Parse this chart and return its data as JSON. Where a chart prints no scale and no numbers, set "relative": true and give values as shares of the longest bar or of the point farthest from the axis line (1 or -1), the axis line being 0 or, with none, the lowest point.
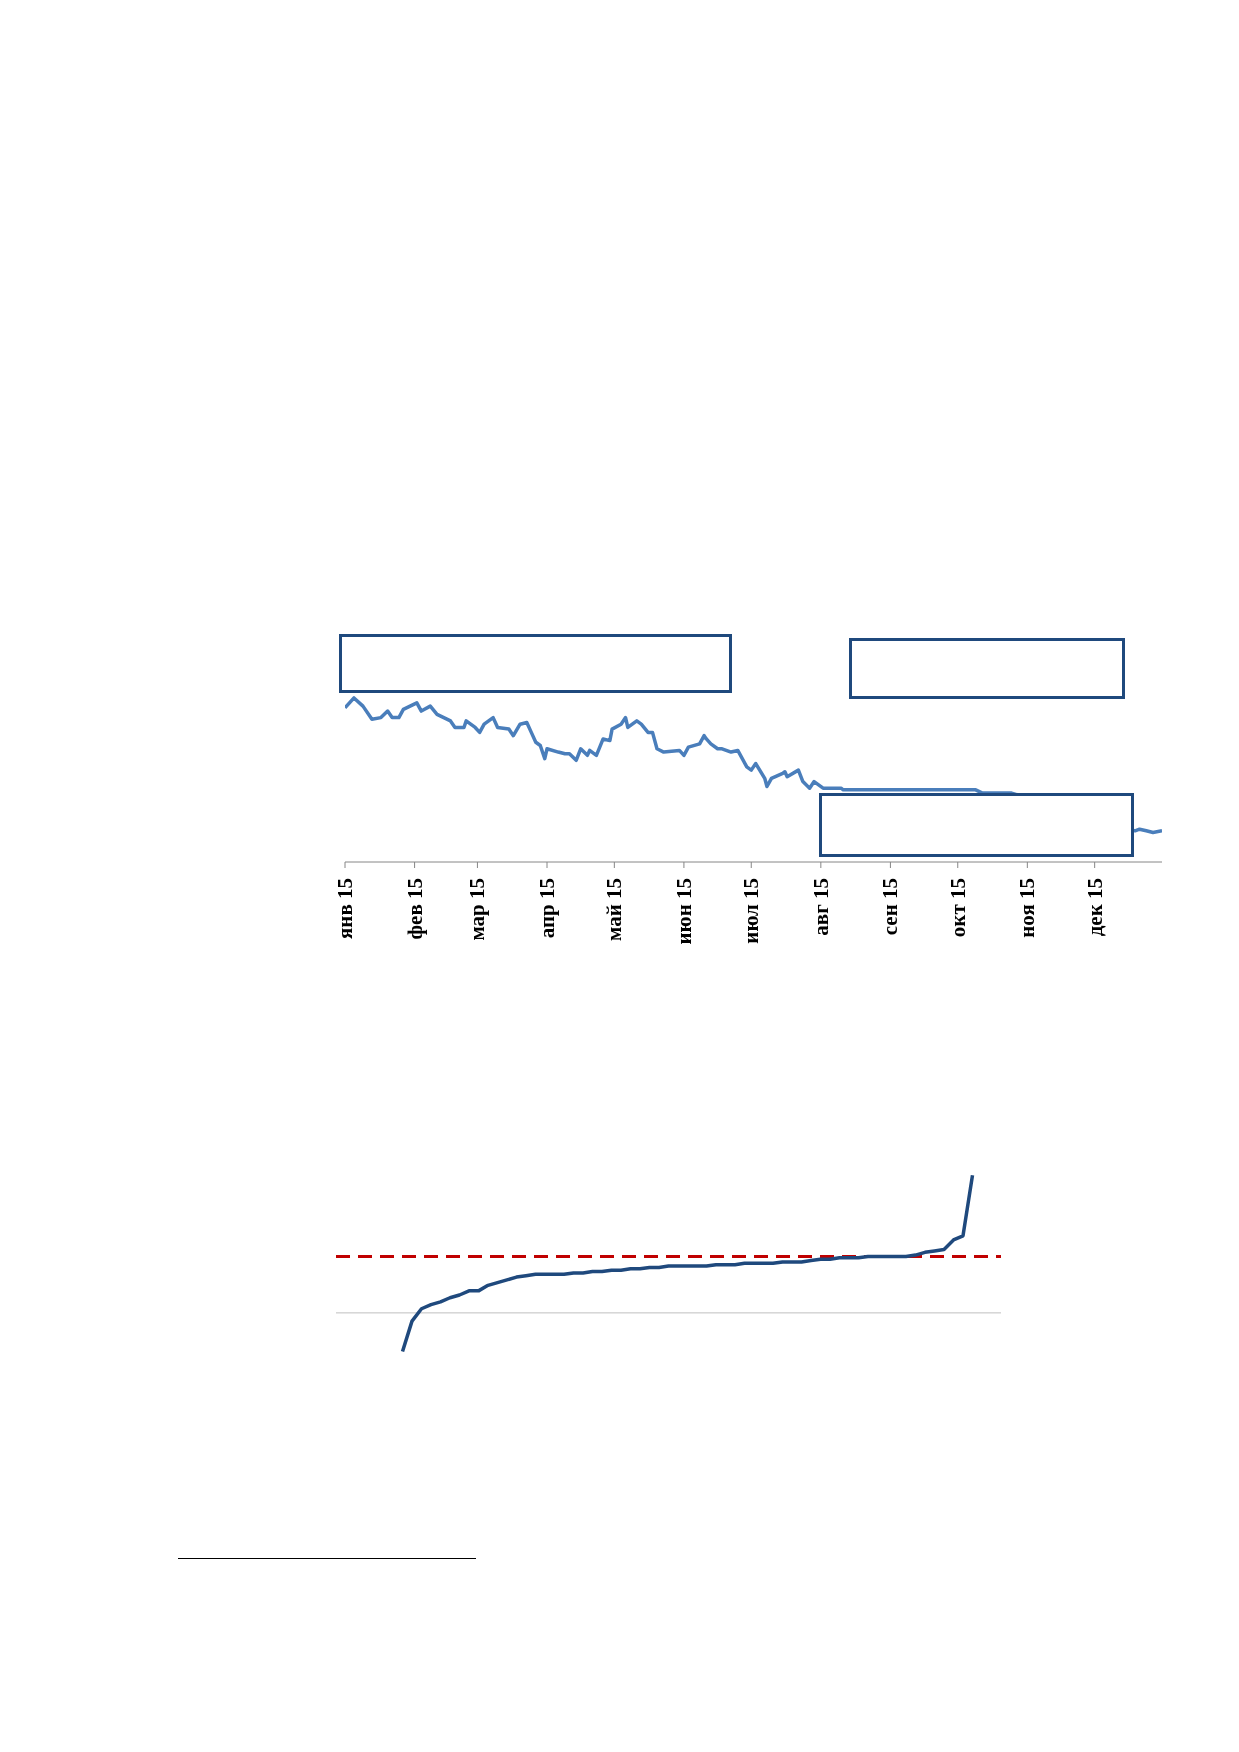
{
  "chart_data": [
    {
      "type": "line",
      "relative": true,
      "tick_labels": "x",
      "xlim": [
        "2015-01-01",
        "2015-12-31"
      ],
      "xticks": [
        {
          "value": "2015-01-01",
          "label": "янв 15"
        },
        {
          "value": "2015-02-01",
          "label": "фев 15"
        },
        {
          "value": "2015-03-01",
          "label": "мар 15"
        },
        {
          "value": "2015-04-01",
          "label": "апр 15"
        },
        {
          "value": "2015-05-01",
          "label": "май 15"
        },
        {
          "value": "2015-06-01",
          "label": "июн 15"
        },
        {
          "value": "2015-07-01",
          "label": "июл 15"
        },
        {
          "value": "2015-08-01",
          "label": "авг 15"
        },
        {
          "value": "2015-09-01",
          "label": "сен 15"
        },
        {
          "value": "2015-10-01",
          "label": "окт 15"
        },
        {
          "value": "2015-11-01",
          "label": "ноя 15"
        },
        {
          "value": "2015-12-01",
          "label": "дек 15"
        }
      ],
      "x": [
        "2015-01-01",
        "2015-01-05",
        "2015-01-09",
        "2015-01-13",
        "2015-01-17",
        "2015-01-20",
        "2015-01-22",
        "2015-01-25",
        "2015-01-27",
        "2015-02-02",
        "2015-02-04",
        "2015-02-08",
        "2015-02-11",
        "2015-02-17",
        "2015-02-19",
        "2015-02-23",
        "2015-02-24",
        "2015-02-28",
        "2015-03-02",
        "2015-03-04",
        "2015-03-08",
        "2015-03-10",
        "2015-03-15",
        "2015-03-17",
        "2015-03-20",
        "2015-03-23",
        "2015-03-25",
        "2015-03-27",
        "2015-03-29",
        "2015-03-31",
        "2015-04-01",
        "2015-04-06",
        "2015-04-09",
        "2015-04-11",
        "2015-04-14",
        "2015-04-16",
        "2015-04-19",
        "2015-04-20",
        "2015-04-23",
        "2015-04-26",
        "2015-04-29",
        "2015-04-30",
        "2015-05-04",
        "2015-05-06",
        "2015-05-07",
        "2015-05-11",
        "2015-05-13",
        "2015-05-16",
        "2015-05-18",
        "2015-05-20",
        "2015-05-23",
        "2015-05-30",
        "2015-06-01",
        "2015-06-03",
        "2015-06-08",
        "2015-06-10",
        "2015-06-11",
        "2015-06-13",
        "2015-06-16",
        "2015-06-18",
        "2015-06-22",
        "2015-06-25",
        "2015-06-29",
        "2015-07-01",
        "2015-07-03",
        "2015-07-07",
        "2015-07-08",
        "2015-07-10",
        "2015-07-15",
        "2015-07-16",
        "2015-07-17",
        "2015-07-22",
        "2015-07-24",
        "2015-07-27",
        "2015-07-29",
        "2015-08-02",
        "2015-08-10",
        "2015-08-11",
        "2015-08-13",
        "2015-08-29",
        "2015-10-09",
        "2015-10-12",
        "2015-10-20",
        "2015-10-24",
        "2015-10-25",
        "2015-11-17",
        "2015-12-19",
        "2015-12-21",
        "2015-12-24",
        "2015-12-27",
        "2015-12-31"
      ],
      "series": [
        {
          "color": "#4a7ebb",
          "values": [
            0.94,
            1,
            0.95,
            0.87,
            0.88,
            0.92,
            0.88,
            0.88,
            0.93,
            0.97,
            0.92,
            0.95,
            0.9,
            0.86,
            0.82,
            0.82,
            0.86,
            0.82,
            0.79,
            0.84,
            0.88,
            0.82,
            0.81,
            0.77,
            0.84,
            0.85,
            0.79,
            0.73,
            0.71,
            0.63,
            0.69,
            0.67,
            0.66,
            0.66,
            0.62,
            0.69,
            0.65,
            0.68,
            0.65,
            0.75,
            0.74,
            0.81,
            0.84,
            0.88,
            0.82,
            0.86,
            0.84,
            0.79,
            0.79,
            0.69,
            0.67,
            0.68,
            0.65,
            0.7,
            0.72,
            0.77,
            0.75,
            0.72,
            0.69,
            0.69,
            0.67,
            0.68,
            0.58,
            0.56,
            0.6,
            0.51,
            0.46,
            0.51,
            0.54,
            0.55,
            0.52,
            0.56,
            0.49,
            0.45,
            0.49,
            0.45,
            0.45,
            0.44,
            null,
            null,
            0.44,
            0.42,
            null,
            0.42,
            0.42,
            null,
            0.19,
            0.2,
            0.19,
            0.18,
            0.19
          ]
        }
      ]
    },
    {
      "type": "line",
      "relative": true,
      "tick_labels": false,
      "categories": [
        null,
        null,
        null,
        null,
        null,
        null,
        null,
        null,
        null,
        null,
        null,
        null,
        null,
        null,
        null,
        null,
        null,
        null,
        null,
        null,
        null,
        null,
        null,
        null,
        null,
        null,
        null,
        null,
        null,
        null,
        null,
        null,
        null,
        null,
        null,
        null,
        null,
        null,
        null,
        null,
        null,
        null,
        null,
        null,
        null,
        null,
        null,
        null,
        null,
        null,
        null,
        null,
        null,
        null,
        null,
        null,
        null,
        null,
        null,
        null,
        null,
        null,
        null,
        null,
        null,
        null,
        null,
        null,
        null,
        null,
        null
      ],
      "series": [
        {
          "color": "#1f497d",
          "values": [
            null,
            null,
            null,
            null,
            null,
            null,
            null,
            -0.28,
            -0.06,
            0.03,
            0.06,
            0.08,
            0.11,
            0.13,
            0.16,
            0.16,
            0.2,
            0.22,
            0.24,
            0.26,
            0.27,
            0.28,
            0.28,
            0.28,
            0.28,
            0.29,
            0.29,
            0.3,
            0.3,
            0.31,
            0.31,
            0.32,
            0.32,
            0.33,
            0.33,
            0.34,
            0.34,
            0.34,
            0.34,
            0.34,
            0.35,
            0.35,
            0.35,
            0.36,
            0.36,
            0.36,
            0.36,
            0.37,
            0.37,
            0.37,
            0.38,
            0.39,
            0.39,
            0.4,
            0.4,
            0.4,
            0.41,
            0.41,
            0.41,
            0.41,
            0.41,
            0.42,
            0.44,
            0.45,
            0.46,
            0.53,
            0.56,
            1.0,
            null,
            null,
            null
          ]
        }
      ],
      "ref_lines": [
        {
          "axis": "y",
          "value": 0.41,
          "color": "#c00000",
          "line_style": "dashed"
        }
      ]
    }
  ]
}
